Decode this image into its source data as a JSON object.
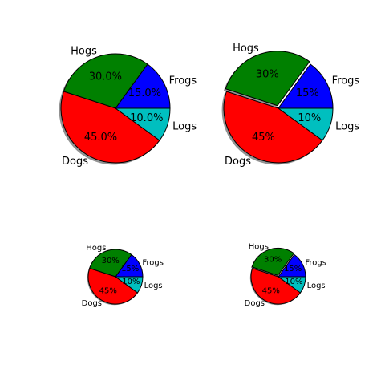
{
  "chart_data": [
    {
      "type": "pie",
      "categories": [
        "Frogs",
        "Hogs",
        "Dogs",
        "Logs"
      ],
      "values": [
        15,
        30,
        45,
        10
      ],
      "pct_labels": [
        "15.0%",
        "30.0%",
        "45.0%",
        "10.0%"
      ],
      "colors": [
        "#0000ff",
        "#008000",
        "#ff0000",
        "#00bfbf"
      ],
      "explode": [
        0,
        0,
        0,
        0
      ],
      "shadow": true,
      "start_angle": 0
    },
    {
      "type": "pie",
      "categories": [
        "Frogs",
        "Hogs",
        "Dogs",
        "Logs"
      ],
      "values": [
        15,
        30,
        45,
        10
      ],
      "pct_labels": [
        "15%",
        "30%",
        "45%",
        "10%"
      ],
      "colors": [
        "#0000ff",
        "#008000",
        "#ff0000",
        "#00bfbf"
      ],
      "explode": [
        0,
        0.05,
        0,
        0
      ],
      "shadow": true,
      "start_angle": 0
    },
    {
      "type": "pie",
      "categories": [
        "Frogs",
        "Hogs",
        "Dogs",
        "Logs"
      ],
      "values": [
        15,
        30,
        45,
        10
      ],
      "pct_labels": [
        "15%",
        "30%",
        "45%",
        "10%"
      ],
      "colors": [
        "#0000ff",
        "#008000",
        "#ff0000",
        "#00bfbf"
      ],
      "explode": [
        0,
        0,
        0,
        0
      ],
      "shadow": true,
      "start_angle": 0
    },
    {
      "type": "pie",
      "categories": [
        "Frogs",
        "Hogs",
        "Dogs",
        "Logs"
      ],
      "values": [
        15,
        30,
        45,
        10
      ],
      "pct_labels": [
        "15%",
        "30%",
        "45%",
        "10%"
      ],
      "colors": [
        "#0000ff",
        "#008000",
        "#ff0000",
        "#00bfbf"
      ],
      "explode": [
        0,
        0.05,
        0,
        0
      ],
      "shadow": true,
      "start_angle": 0
    }
  ]
}
